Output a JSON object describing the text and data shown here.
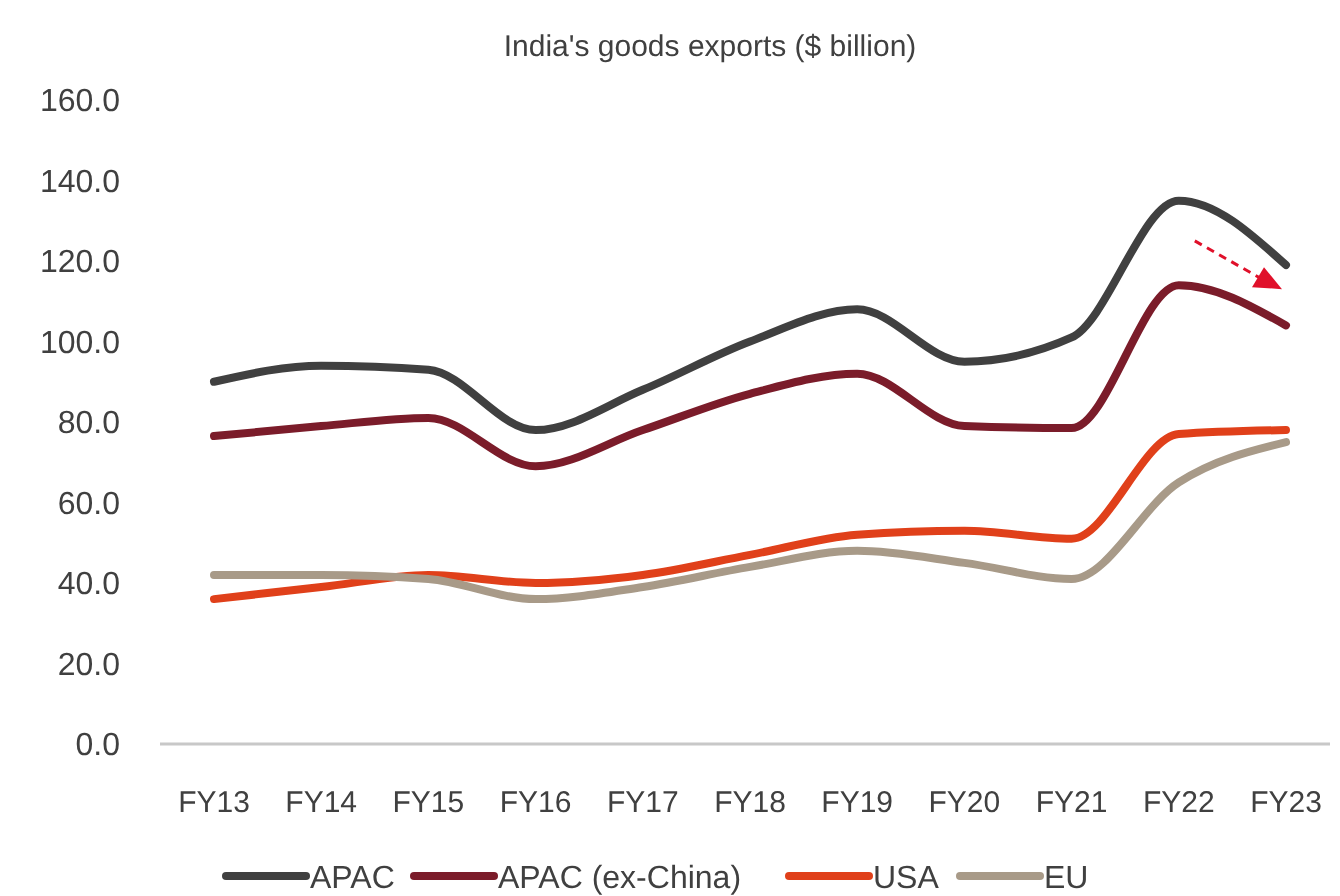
{
  "chart_data": {
    "type": "line",
    "subtitle": "India's goods exports ($ billion)",
    "categories": [
      "FY13",
      "FY14",
      "FY15",
      "FY16",
      "FY17",
      "FY18",
      "FY19",
      "FY20",
      "FY21",
      "FY22",
      "FY23"
    ],
    "series": [
      {
        "name": "APAC",
        "color": "#404040",
        "values": [
          90,
          94,
          93,
          78,
          88,
          100,
          108,
          95,
          101,
          135,
          119
        ]
      },
      {
        "name": "APAC (ex-China)",
        "color": "#7b1c2a",
        "values": [
          76.5,
          79,
          81,
          69,
          78,
          87,
          92,
          79,
          78.5,
          114,
          104
        ]
      },
      {
        "name": "USA",
        "color": "#e0401a",
        "values": [
          36,
          39,
          42,
          40,
          42,
          47,
          52,
          53,
          51,
          77,
          78
        ]
      },
      {
        "name": "EU",
        "color": "#a89a88",
        "values": [
          42,
          42,
          41,
          36,
          39,
          44,
          48,
          45,
          41,
          65,
          75
        ]
      }
    ],
    "ylim": [
      0,
      160
    ],
    "yticks": [
      {
        "value": 0,
        "label": "0.0"
      },
      {
        "value": 20,
        "label": "20.0"
      },
      {
        "value": 40,
        "label": "40.0"
      },
      {
        "value": 60,
        "label": "60.0"
      },
      {
        "value": 80,
        "label": "80.0"
      },
      {
        "value": 100,
        "label": "100.0"
      },
      {
        "value": 120,
        "label": "120.0"
      },
      {
        "value": 140,
        "label": "140.0"
      },
      {
        "value": 160,
        "label": "160.0"
      }
    ],
    "grid": false,
    "legend": "bottom",
    "marker": "none",
    "line_style": "solid"
  }
}
